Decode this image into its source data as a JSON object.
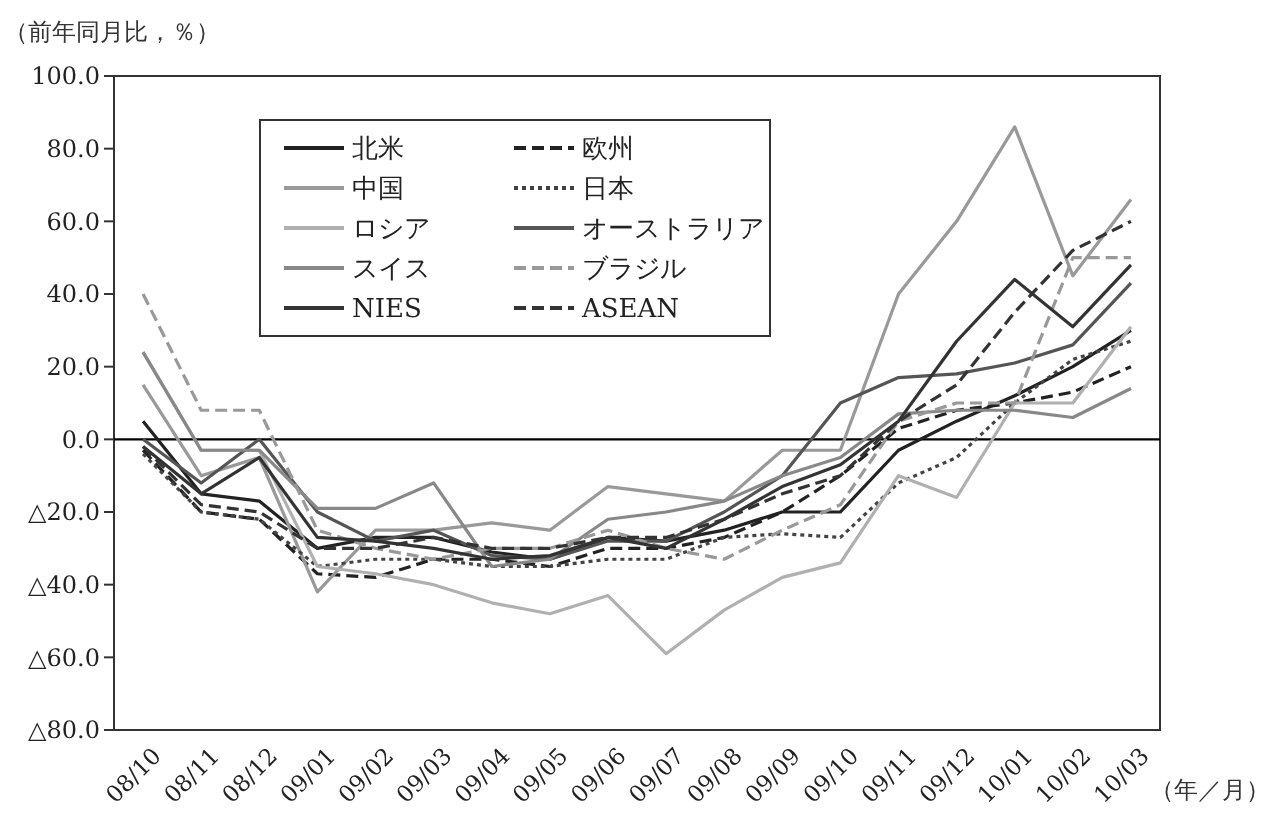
{
  "chart_data": {
    "type": "line",
    "ylabel": "（前年同月比，％）",
    "xlabel": "（年／月）",
    "categories": [
      "08/10",
      "08/11",
      "08/12",
      "09/01",
      "09/02",
      "09/03",
      "09/04",
      "09/05",
      "09/06",
      "09/07",
      "09/08",
      "09/09",
      "09/10",
      "09/11",
      "09/12",
      "10/01",
      "10/02",
      "10/03"
    ],
    "ylim": [
      -80,
      100
    ],
    "yticks": [
      {
        "value": 100,
        "label": "100.0"
      },
      {
        "value": 80,
        "label": "80.0"
      },
      {
        "value": 60,
        "label": "60.0"
      },
      {
        "value": 40,
        "label": "40.0"
      },
      {
        "value": 20,
        "label": "20.0"
      },
      {
        "value": 0,
        "label": "0.0"
      },
      {
        "value": -20,
        "label": "△20.0"
      },
      {
        "value": -40,
        "label": "△40.0"
      },
      {
        "value": -60,
        "label": "△60.0"
      },
      {
        "value": -80,
        "label": "△80.0"
      }
    ],
    "ref_lines": [
      {
        "axis": "y",
        "value": 0,
        "color": "#000000"
      }
    ],
    "legend": "top left",
    "grid": false,
    "marker": "none",
    "series": [
      {
        "name": "北米",
        "color": "#222222",
        "line_style": "solid",
        "values": [
          5,
          -15,
          -17,
          -30,
          -27,
          -27,
          -31,
          -33,
          -27,
          -28,
          -25,
          -20,
          -20,
          -3,
          5,
          12,
          20,
          30
        ]
      },
      {
        "name": "欧州",
        "color": "#222222",
        "line_style": "dashed",
        "values": [
          -3,
          -20,
          -22,
          -37,
          -38,
          -33,
          -33,
          -35,
          -30,
          -30,
          -27,
          -20,
          -10,
          3,
          8,
          10,
          13,
          20
        ]
      },
      {
        "name": "中国",
        "color": "#999999",
        "line_style": "solid",
        "values": [
          15,
          -10,
          -5,
          -42,
          -25,
          -25,
          -23,
          -25,
          -13,
          -15,
          -17,
          -3,
          -3,
          40,
          60,
          86,
          45,
          66
        ]
      },
      {
        "name": "日本",
        "color": "#444444",
        "line_style": "dotted",
        "values": [
          -4,
          -20,
          -22,
          -35,
          -33,
          -33,
          -35,
          -35,
          -33,
          -33,
          -27,
          -26,
          -27,
          -12,
          -5,
          10,
          22,
          27
        ]
      },
      {
        "name": "ロシア",
        "color": "#b0b0b0",
        "line_style": "solid",
        "values": [
          24,
          -3,
          -3,
          -35,
          -37,
          -40,
          -45,
          -48,
          -43,
          -59,
          -47,
          -38,
          -34,
          -10,
          -16,
          10,
          10,
          31
        ]
      },
      {
        "name": "オーストラリア",
        "color": "#555555",
        "line_style": "solid",
        "values": [
          0,
          -12,
          0,
          -20,
          -28,
          -25,
          -32,
          -33,
          -28,
          -28,
          -20,
          -10,
          10,
          17,
          18,
          21,
          26,
          43
        ]
      },
      {
        "name": "スイス",
        "color": "#888888",
        "line_style": "solid",
        "values": [
          24,
          -3,
          -3,
          -19,
          -19,
          -12,
          -35,
          -33,
          -22,
          -20,
          -17,
          -10,
          -5,
          7,
          8,
          8,
          6,
          14
        ]
      },
      {
        "name": "ブラジル",
        "color": "#999999",
        "line_style": "dashed",
        "values": [
          40,
          8,
          8,
          -25,
          -30,
          -33,
          -30,
          -30,
          -25,
          -30,
          -33,
          -25,
          -18,
          5,
          10,
          10,
          50,
          50
        ]
      },
      {
        "name": "NIES",
        "color": "#333333",
        "line_style": "solid",
        "values": [
          -2,
          -15,
          -5,
          -27,
          -28,
          -30,
          -33,
          -32,
          -27,
          -30,
          -22,
          -13,
          -7,
          5,
          27,
          44,
          31,
          48
        ]
      },
      {
        "name": "ASEAN",
        "color": "#333333",
        "line_style": "dashed",
        "values": [
          -2,
          -18,
          -20,
          -30,
          -30,
          -27,
          -30,
          -30,
          -27,
          -27,
          -22,
          -15,
          -10,
          5,
          15,
          35,
          52,
          60
        ]
      }
    ]
  }
}
